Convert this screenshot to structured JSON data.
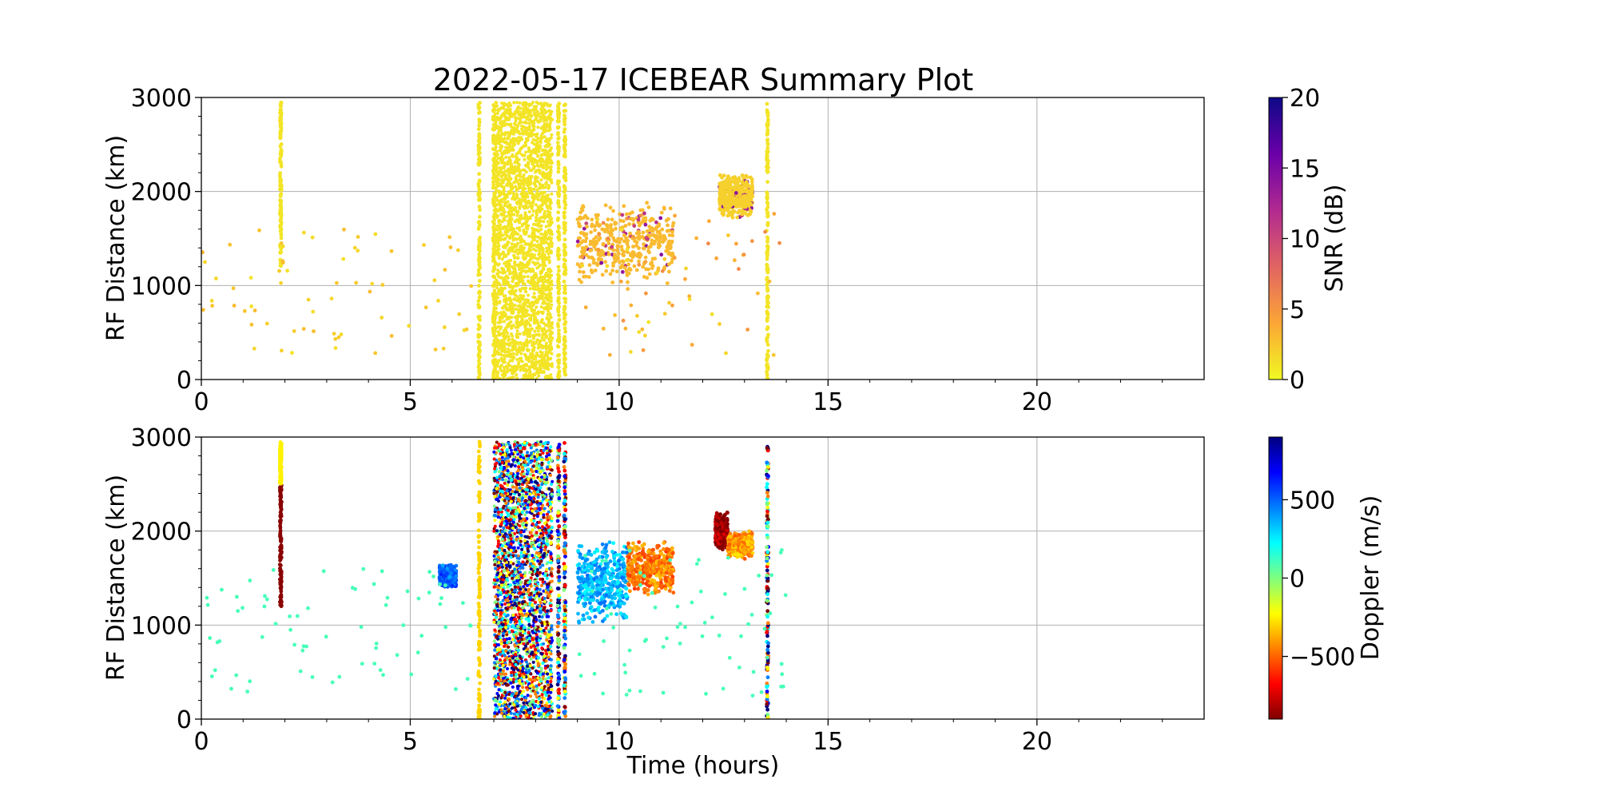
{
  "title": "2022-05-17 ICEBEAR Summary Plot",
  "chart_data": [
    {
      "type": "scatter",
      "panel": "top",
      "title": "2022-05-17 ICEBEAR Summary Plot",
      "xlabel": "",
      "ylabel": "RF Distance (km)",
      "xlim": [
        0,
        24
      ],
      "ylim": [
        0,
        3000
      ],
      "grid": true,
      "x_ticks": [
        0,
        5,
        10,
        15,
        20
      ],
      "y_ticks": [
        0,
        1000,
        2000,
        3000
      ],
      "color_variable": "SNR",
      "colorbar": {
        "label": "SNR (dB)",
        "colormap": "plasma_r",
        "range": [
          0,
          20
        ],
        "ticks": [
          0,
          5,
          10,
          15,
          20
        ],
        "colors": [
          "#f0f921",
          "#fca636",
          "#e16462",
          "#b12a90",
          "#6a00a8",
          "#0d0887"
        ]
      },
      "features": [
        {
          "kind": "vertical_streak",
          "x": 1.9,
          "y_range": [
            1200,
            2950
          ],
          "value": 1
        },
        {
          "kind": "vertical_streak",
          "x": 6.65,
          "y_range": [
            0,
            2950
          ],
          "value": 1
        },
        {
          "kind": "dense_band",
          "x_range": [
            7.0,
            8.4
          ],
          "y_range": [
            0,
            2950
          ],
          "value": 1
        },
        {
          "kind": "vertical_streak",
          "x": 7.0,
          "y_range": [
            0,
            2950
          ],
          "value": 1
        },
        {
          "kind": "vertical_streak",
          "x": 8.55,
          "y_range": [
            0,
            2950
          ],
          "value": 1
        },
        {
          "kind": "vertical_streak",
          "x": 8.7,
          "y_range": [
            0,
            2950
          ],
          "value": 1
        },
        {
          "kind": "cluster",
          "x_range": [
            9.0,
            11.3
          ],
          "y_range": [
            1000,
            1900
          ],
          "value": 3
        },
        {
          "kind": "cluster",
          "x_range": [
            12.4,
            13.2
          ],
          "y_range": [
            1700,
            2200
          ],
          "value": 2
        },
        {
          "kind": "vertical_streak",
          "x": 13.55,
          "y_range": [
            0,
            2950
          ],
          "value": 1
        },
        {
          "kind": "sparse",
          "x_range": [
            0,
            6.5
          ],
          "y_range": [
            280,
            1600
          ],
          "value": 2
        },
        {
          "kind": "sparse",
          "x_range": [
            9.0,
            14.0
          ],
          "y_range": [
            250,
            1800
          ],
          "value": 5
        }
      ]
    },
    {
      "type": "scatter",
      "panel": "bottom",
      "xlabel": "Time (hours)",
      "ylabel": "RF Distance (km)",
      "xlim": [
        0,
        24
      ],
      "ylim": [
        0,
        3000
      ],
      "grid": true,
      "x_ticks": [
        0,
        5,
        10,
        15,
        20
      ],
      "y_ticks": [
        0,
        1000,
        2000,
        3000
      ],
      "color_variable": "Doppler",
      "colorbar": {
        "label": "Doppler (m/s)",
        "colormap": "jet_r",
        "range": [
          -900,
          900
        ],
        "ticks": [
          -500,
          0,
          500
        ],
        "tick_labels": [
          "−500",
          "0",
          "500"
        ],
        "colors": [
          "#7f0000",
          "#ff0000",
          "#ff7f00",
          "#ffff00",
          "#7fff7f",
          "#00ffff",
          "#007fff",
          "#0000ff",
          "#00007f"
        ]
      },
      "features": [
        {
          "kind": "vertical_streak",
          "x": 1.9,
          "y_range": [
            1200,
            2500
          ],
          "value": -880
        },
        {
          "kind": "vertical_streak",
          "x": 1.9,
          "y_range": [
            2500,
            2950
          ],
          "value": -250
        },
        {
          "kind": "cluster",
          "x_range": [
            5.7,
            6.1
          ],
          "y_range": [
            1400,
            1650
          ],
          "value": 500
        },
        {
          "kind": "vertical_streak",
          "x": 6.65,
          "y_range": [
            0,
            2950
          ],
          "value": -300
        },
        {
          "kind": "dense_band",
          "x_range": [
            7.0,
            8.4
          ],
          "y_range": [
            0,
            2950
          ],
          "value": "mixed"
        },
        {
          "kind": "vertical_streak",
          "x": 8.55,
          "y_range": [
            0,
            2950
          ],
          "value": "mixed"
        },
        {
          "kind": "vertical_streak",
          "x": 8.7,
          "y_range": [
            0,
            2950
          ],
          "value": "mixed"
        },
        {
          "kind": "cluster",
          "x_range": [
            9.0,
            10.2
          ],
          "y_range": [
            1000,
            1900
          ],
          "value": 350
        },
        {
          "kind": "cluster",
          "x_range": [
            10.2,
            11.3
          ],
          "y_range": [
            1300,
            1900
          ],
          "value": -450
        },
        {
          "kind": "cluster",
          "x_range": [
            12.3,
            12.6
          ],
          "y_range": [
            1800,
            2200
          ],
          "value": -850
        },
        {
          "kind": "cluster",
          "x_range": [
            12.6,
            13.2
          ],
          "y_range": [
            1700,
            2000
          ],
          "value": -400
        },
        {
          "kind": "vertical_streak",
          "x": 13.55,
          "y_range": [
            0,
            2950
          ],
          "value": "mixed"
        },
        {
          "kind": "sparse",
          "x_range": [
            0,
            6.5
          ],
          "y_range": [
            280,
            1600
          ],
          "value": 100
        },
        {
          "kind": "sparse",
          "x_range": [
            9.0,
            14.0
          ],
          "y_range": [
            250,
            1800
          ],
          "value": 100
        }
      ]
    }
  ]
}
